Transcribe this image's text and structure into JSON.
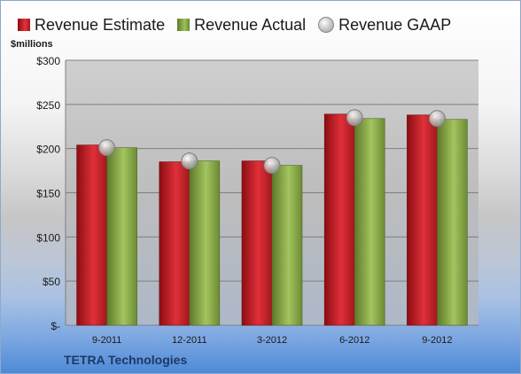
{
  "legend": {
    "estimate": "Revenue Estimate",
    "actual": "Revenue Actual",
    "gaap": "Revenue GAAP"
  },
  "unit_label": "$millions",
  "company": "TETRA Technologies",
  "colors": {
    "estimate": "#d42027",
    "actual": "#8cac4f",
    "gaap": "#c9c9c9",
    "plot_area": "#c0c0c0",
    "company_text": "#1f3864"
  },
  "chart_data": {
    "type": "bar",
    "categories": [
      "9-2011",
      "12-2011",
      "3-2012",
      "6-2012",
      "9-2012"
    ],
    "series": [
      {
        "name": "Revenue Estimate",
        "values": [
          204,
          185,
          186,
          239,
          238
        ]
      },
      {
        "name": "Revenue Actual",
        "values": [
          201,
          186,
          181,
          234,
          233
        ]
      },
      {
        "name": "Revenue GAAP",
        "type": "scatter",
        "values": [
          201,
          186,
          181,
          235,
          234
        ]
      }
    ],
    "ylim": [
      0,
      300
    ],
    "yticks": [
      0,
      50,
      100,
      150,
      200,
      250,
      300
    ],
    "ytick_labels": [
      "$-",
      "$50",
      "$100",
      "$150",
      "$200",
      "$250",
      "$300"
    ],
    "grid": true,
    "legend_position": "top"
  }
}
